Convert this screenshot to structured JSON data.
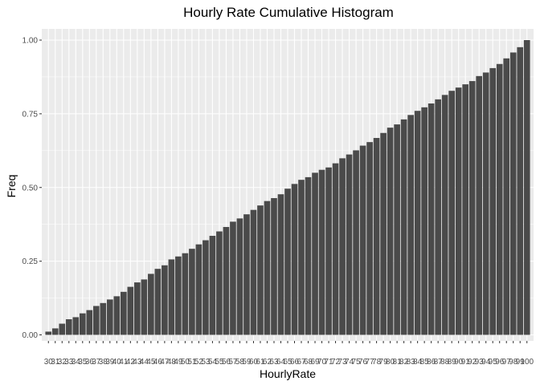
{
  "chart_data": {
    "type": "bar",
    "title": "Hourly Rate Cumulative Histogram",
    "xlabel": "HourlyRate",
    "ylabel": "Freq",
    "ylim": [
      0,
      1.0
    ],
    "yticks": [
      "0.00",
      "0.25",
      "0.50",
      "0.75",
      "1.00"
    ],
    "grid": true,
    "colors": {
      "panel": "#ebebeb",
      "grid": "#ffffff",
      "bar": "#4a4a4a",
      "text": "#4d4d4d"
    },
    "categories": [
      "30",
      "31",
      "32",
      "33",
      "34",
      "35",
      "36",
      "37",
      "38",
      "39",
      "40",
      "41",
      "42",
      "43",
      "44",
      "45",
      "46",
      "47",
      "48",
      "49",
      "50",
      "51",
      "52",
      "53",
      "54",
      "55",
      "56",
      "57",
      "58",
      "59",
      "60",
      "61",
      "62",
      "63",
      "64",
      "65",
      "66",
      "67",
      "68",
      "69",
      "70",
      "71",
      "72",
      "73",
      "74",
      "75",
      "76",
      "77",
      "78",
      "79",
      "80",
      "81",
      "82",
      "83",
      "84",
      "85",
      "86",
      "87",
      "88",
      "89",
      "90",
      "91",
      "92",
      "93",
      "94",
      "95",
      "96",
      "97",
      "98",
      "99",
      "100"
    ],
    "values": [
      0.011,
      0.022,
      0.038,
      0.053,
      0.06,
      0.073,
      0.084,
      0.098,
      0.108,
      0.12,
      0.131,
      0.146,
      0.163,
      0.178,
      0.188,
      0.207,
      0.224,
      0.236,
      0.256,
      0.266,
      0.277,
      0.292,
      0.307,
      0.321,
      0.336,
      0.351,
      0.366,
      0.384,
      0.395,
      0.409,
      0.424,
      0.439,
      0.454,
      0.464,
      0.477,
      0.496,
      0.512,
      0.526,
      0.535,
      0.55,
      0.56,
      0.568,
      0.582,
      0.599,
      0.612,
      0.626,
      0.642,
      0.654,
      0.668,
      0.685,
      0.703,
      0.714,
      0.731,
      0.746,
      0.76,
      0.772,
      0.785,
      0.799,
      0.814,
      0.828,
      0.839,
      0.85,
      0.861,
      0.878,
      0.89,
      0.905,
      0.919,
      0.938,
      0.958,
      0.976,
      1.0
    ]
  }
}
